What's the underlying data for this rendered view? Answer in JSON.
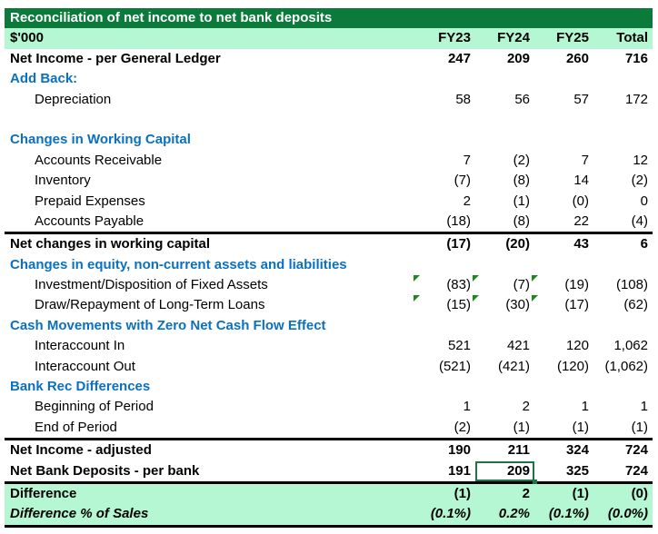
{
  "title": "Reconciliation of net income to net bank deposits",
  "header": {
    "label": "$'000",
    "cols": [
      "FY23",
      "FY24",
      "FY25",
      "Total"
    ]
  },
  "rows": [
    {
      "label": "Net Income - per General Ledger",
      "v": [
        "247",
        "209",
        "260",
        "716"
      ]
    },
    {
      "label": "Add Back:"
    },
    {
      "label": "Depreciation",
      "v": [
        "58",
        "56",
        "57",
        "172"
      ]
    },
    {
      "label": ""
    },
    {
      "label": "Changes in Working Capital"
    },
    {
      "label": "Accounts Receivable",
      "v": [
        "7",
        "(2)",
        "7",
        "12"
      ]
    },
    {
      "label": "Inventory",
      "v": [
        "(7)",
        "(8)",
        "14",
        "(2)"
      ]
    },
    {
      "label": "Prepaid Expenses",
      "v": [
        "2",
        "(1)",
        "(0)",
        "0"
      ]
    },
    {
      "label": "Accounts Payable",
      "v": [
        "(18)",
        "(8)",
        "22",
        "(4)"
      ]
    },
    {
      "label": "Net changes in working capital",
      "v": [
        "(17)",
        "(20)",
        "43",
        "6"
      ]
    },
    {
      "label": "Changes in equity, non-current assets and liabilities"
    },
    {
      "label": "Investment/Disposition of Fixed Assets",
      "v": [
        "(83)",
        "(7)",
        "(19)",
        "(108)"
      ]
    },
    {
      "label": "Draw/Repayment of Long-Term Loans",
      "v": [
        "(15)",
        "(30)",
        "(17)",
        "(62)"
      ]
    },
    {
      "label": "Cash Movements with Zero Net Cash Flow Effect"
    },
    {
      "label": "Interaccount In",
      "v": [
        "521",
        "421",
        "120",
        "1,062"
      ]
    },
    {
      "label": "Interaccount Out",
      "v": [
        "(521)",
        "(421)",
        "(120)",
        "(1,062)"
      ]
    },
    {
      "label": "Bank Rec Differences"
    },
    {
      "label": "Beginning of Period",
      "v": [
        "1",
        "2",
        "1",
        "1"
      ]
    },
    {
      "label": "End of Period",
      "v": [
        "(2)",
        "(1)",
        "(1)",
        "(1)"
      ]
    },
    {
      "label": "Net Income - adjusted",
      "v": [
        "190",
        "211",
        "324",
        "724"
      ]
    },
    {
      "label": "Net Bank Deposits - per bank",
      "v": [
        "191",
        "209",
        "325",
        "724"
      ]
    },
    {
      "label": "Difference",
      "v": [
        "(1)",
        "2",
        "(1)",
        "(0)"
      ]
    },
    {
      "label": "Difference % of Sales",
      "v": [
        "(0.1%)",
        "0.2%",
        "(0.1%)",
        "(0.0%)"
      ]
    }
  ]
}
